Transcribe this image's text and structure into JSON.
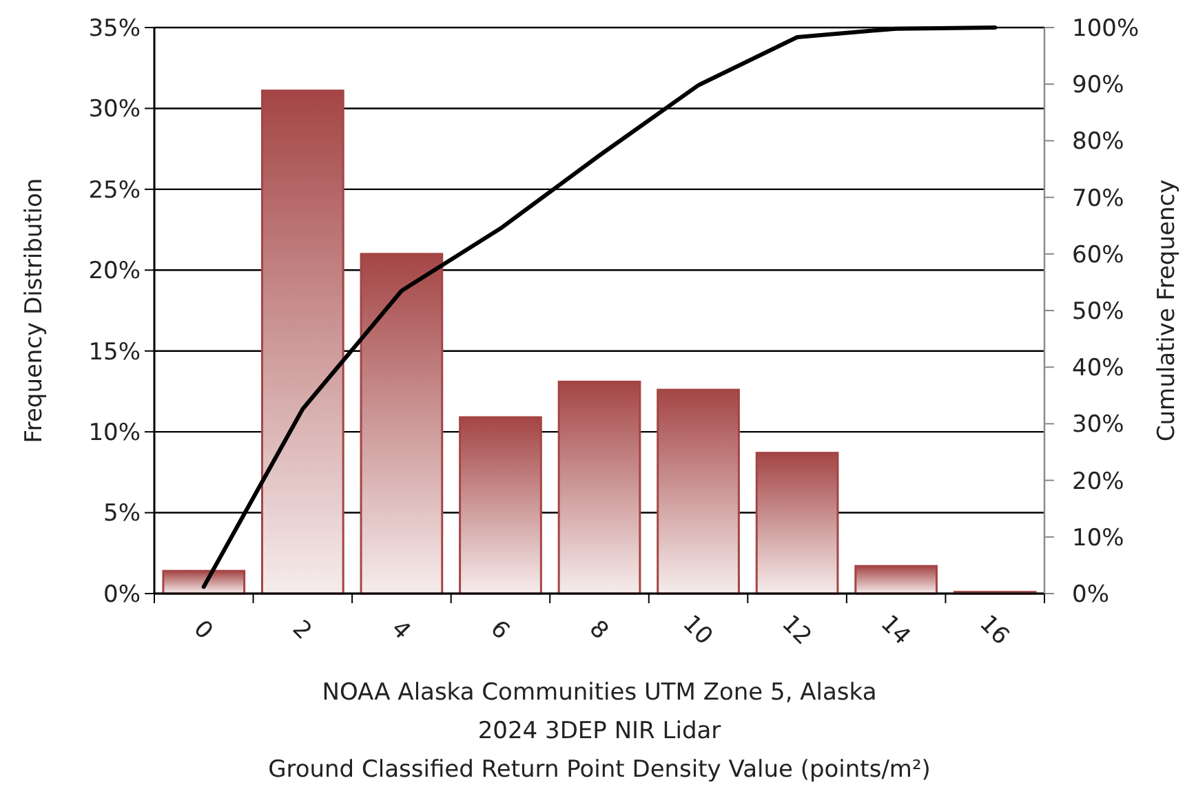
{
  "chart_data": {
    "type": "bar",
    "categories": [
      "0",
      "2",
      "4",
      "6",
      "8",
      "10",
      "12",
      "14",
      "16"
    ],
    "series": [
      {
        "color": "#a44545",
        "values": [
          1.4,
          31.1,
          21.0,
          10.9,
          13.1,
          12.6,
          8.7,
          1.7,
          0.1
        ]
      },
      {
        "type": "line",
        "axis": "y2",
        "color": "#000000",
        "values": [
          1.2,
          32.6,
          53.5,
          64.5,
          77.4,
          89.8,
          98.3,
          99.8,
          100
        ]
      }
    ],
    "ylabel": "Frequency Distribution",
    "y2label": "Cumulative Frequency",
    "xlabel": "NOAA Alaska Communities UTM Zone 5, Alaska\n2024 3DEP NIR Lidar\nGround Classified Return Point Density Value (points/m²)",
    "ylim": [
      0,
      35
    ],
    "yticks": [
      {
        "value": 0,
        "label": "0%"
      },
      {
        "value": 5,
        "label": "5%"
      },
      {
        "value": 10,
        "label": "10%"
      },
      {
        "value": 15,
        "label": "15%"
      },
      {
        "value": 20,
        "label": "20%"
      },
      {
        "value": 25,
        "label": "25%"
      },
      {
        "value": 30,
        "label": "30%"
      },
      {
        "value": 35,
        "label": "35%"
      }
    ],
    "y2lim": [
      0,
      100
    ],
    "y2ticks": [
      {
        "value": 0,
        "label": "0%"
      },
      {
        "value": 10,
        "label": "10%"
      },
      {
        "value": 20,
        "label": "20%"
      },
      {
        "value": 30,
        "label": "30%"
      },
      {
        "value": 40,
        "label": "40%"
      },
      {
        "value": 50,
        "label": "50%"
      },
      {
        "value": 60,
        "label": "60%"
      },
      {
        "value": 70,
        "label": "70%"
      },
      {
        "value": 80,
        "label": "80%"
      },
      {
        "value": 90,
        "label": "90%"
      },
      {
        "value": 100,
        "label": "100%"
      }
    ],
    "grid": "y",
    "marker": "none",
    "line_style": "solid"
  }
}
